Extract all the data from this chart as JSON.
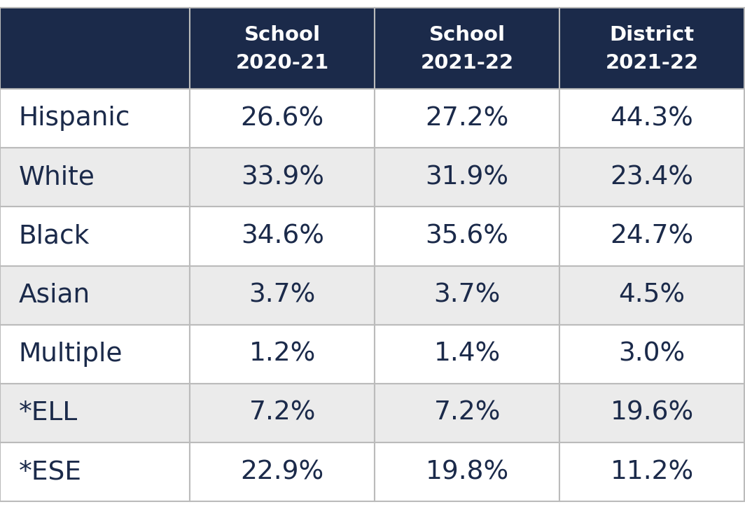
{
  "header_bg_color": "#1B2A4A",
  "header_text_color": "#FFFFFF",
  "row_colors": [
    "#FFFFFF",
    "#EBEBEB"
  ],
  "cell_text_color": "#1B2A4A",
  "border_color": "#BBBBBB",
  "columns": [
    {
      "line1": "School",
      "line2": "2020-21"
    },
    {
      "line1": "School",
      "line2": "2021-22"
    },
    {
      "line1": "District",
      "line2": "2021-22"
    }
  ],
  "rows": [
    {
      "label": "Hispanic",
      "vals": [
        "26.6%",
        "27.2%",
        "44.3%"
      ]
    },
    {
      "label": "White",
      "vals": [
        "33.9%",
        "31.9%",
        "23.4%"
      ]
    },
    {
      "label": "Black",
      "vals": [
        "34.6%",
        "35.6%",
        "24.7%"
      ]
    },
    {
      "label": "Asian",
      "vals": [
        "3.7%",
        "3.7%",
        "4.5%"
      ]
    },
    {
      "label": "Multiple",
      "vals": [
        "1.2%",
        "1.4%",
        "3.0%"
      ]
    },
    {
      "label": "*ELL",
      "vals": [
        "7.2%",
        "7.2%",
        "19.6%"
      ]
    },
    {
      "label": "*ESE",
      "vals": [
        "22.9%",
        "19.8%",
        "11.2%"
      ]
    }
  ],
  "figsize": [
    10.64,
    7.27
  ],
  "dpi": 100,
  "header_fontsize": 21,
  "cell_fontsize": 27,
  "label_fontsize": 27
}
